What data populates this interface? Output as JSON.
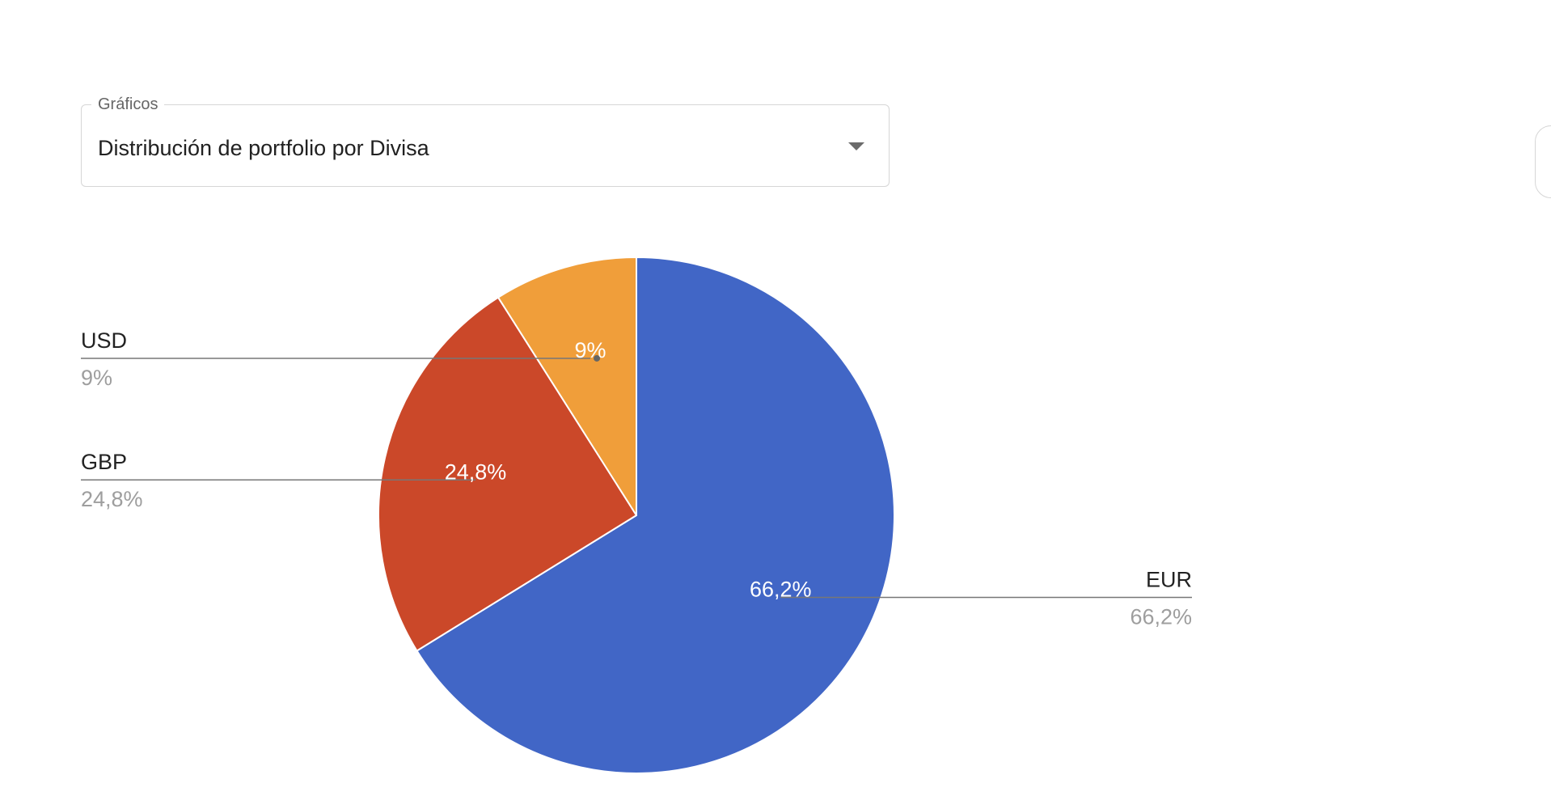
{
  "selector": {
    "label": "Gráficos",
    "value": "Distribución de portfolio por Divisa",
    "icon": "dropdown-arrow-icon"
  },
  "chart_data": {
    "type": "pie",
    "categories": [
      "EUR",
      "GBP",
      "USD"
    ],
    "values": [
      66.2,
      24.8,
      9
    ],
    "slice_labels": [
      "66,2%",
      "24,8%",
      "9%"
    ],
    "colors": [
      "#4166c6",
      "#cb4829",
      "#f09e3a"
    ],
    "start_angle_deg": 0,
    "direction": "clockwise",
    "legend": "labeled callouts beside the pie"
  }
}
